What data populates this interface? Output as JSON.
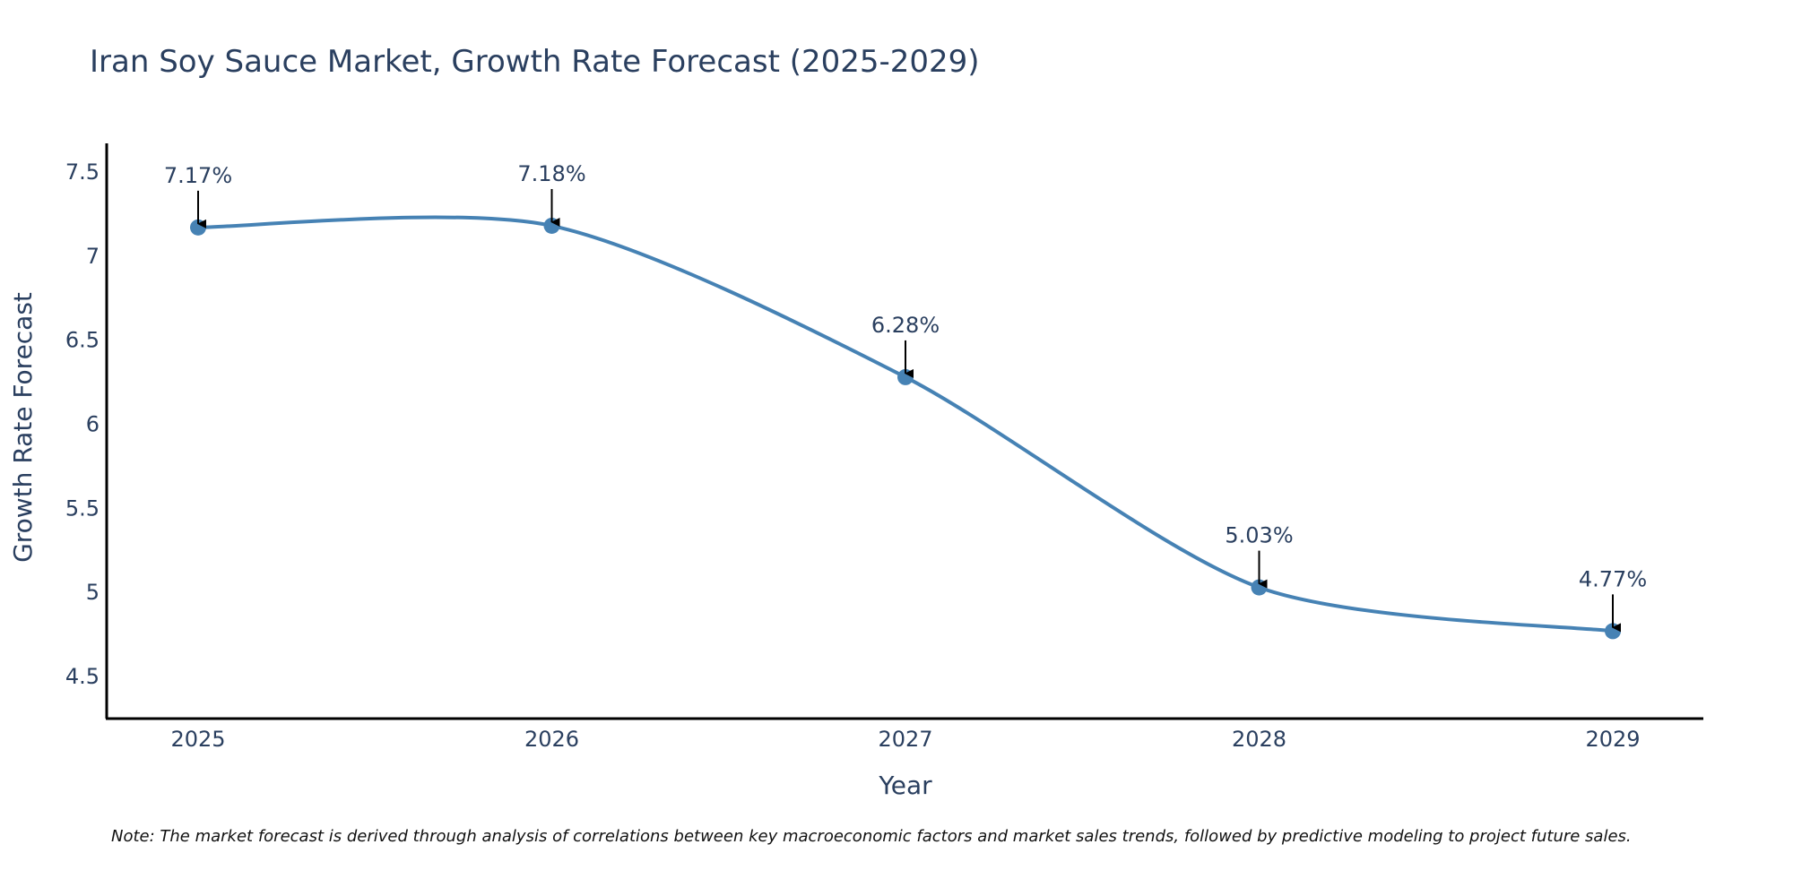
{
  "chart_data": {
    "type": "line",
    "title": "Iran Soy Sauce Market, Growth Rate Forecast (2025-2029)",
    "xlabel": "Year",
    "ylabel": "Growth Rate Forecast",
    "categories": [
      "2025",
      "2026",
      "2027",
      "2028",
      "2029"
    ],
    "values": [
      7.17,
      7.18,
      6.28,
      5.03,
      4.77
    ],
    "data_labels": [
      "7.17%",
      "7.18%",
      "6.28%",
      "5.03%",
      "4.77%"
    ],
    "y_ticks": [
      4.5,
      5,
      5.5,
      6,
      6.5,
      7,
      7.5
    ],
    "y_tick_labels": [
      "4.5",
      "5",
      "5.5",
      "6",
      "6.5",
      "7",
      "7.5"
    ],
    "ylim": [
      4.25,
      7.67
    ],
    "grid": false,
    "legend": "none",
    "line_shape": "spline",
    "line_color": "#4682b4",
    "marker_color": "#4682b4",
    "arrow_color": "#000000",
    "note": "Note: The market forecast is derived through analysis of correlations between key macroeconomic factors and market sales trends, followed by predictive modeling to project future sales."
  }
}
